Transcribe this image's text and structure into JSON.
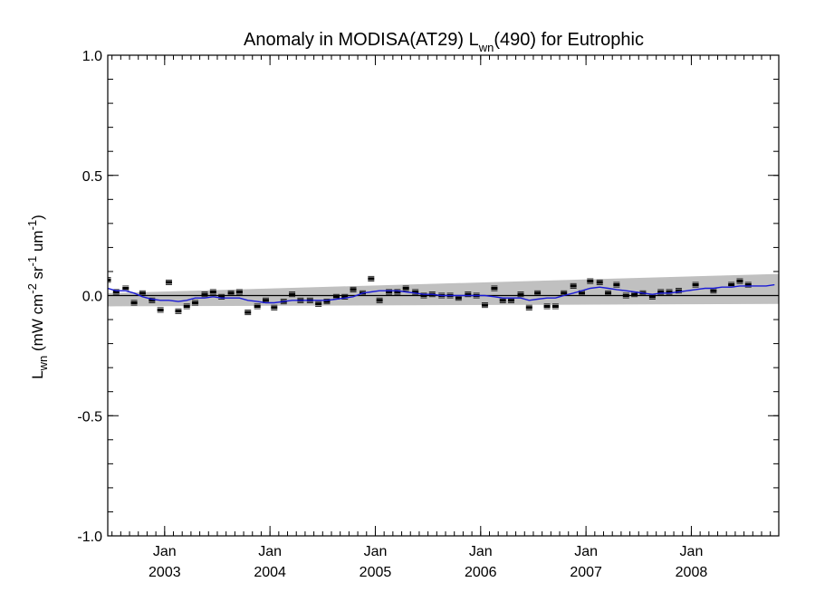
{
  "chart_data": {
    "type": "scatter",
    "title": {
      "prefix": "Anomaly in MODISA(AT29) L",
      "subscript": "wn",
      "suffix": "(490) for Eutrophic"
    },
    "ylabel": {
      "symbol": "L",
      "symbol_sub": "wn",
      "units": [
        {
          "text": " (mW cm"
        },
        {
          "text": "-2",
          "sup": true
        },
        {
          "text": " sr"
        },
        {
          "text": "-1",
          "sup": true
        },
        {
          "text": " um"
        },
        {
          "text": "-1",
          "sup": true
        },
        {
          "text": ")"
        }
      ]
    },
    "xlim": [
      2002.46,
      2008.83
    ],
    "ylim": [
      -1.0,
      1.0
    ],
    "y_ticks": [
      {
        "value": 1.0,
        "label": "1.0"
      },
      {
        "value": 0.5,
        "label": "0.5"
      },
      {
        "value": 0.0,
        "label": "0.0"
      },
      {
        "value": -0.5,
        "label": "-0.5"
      },
      {
        "value": -1.0,
        "label": "-1.0"
      }
    ],
    "y_minor_step": 0.1,
    "x_ticks": [
      {
        "value": 2003.0,
        "month": "Jan",
        "year": "2003"
      },
      {
        "value": 2004.0,
        "month": "Jan",
        "year": "2004"
      },
      {
        "value": 2005.0,
        "month": "Jan",
        "year": "2005"
      },
      {
        "value": 2006.0,
        "month": "Jan",
        "year": "2006"
      },
      {
        "value": 2007.0,
        "month": "Jan",
        "year": "2007"
      },
      {
        "value": 2008.0,
        "month": "Jan",
        "year": "2008"
      }
    ],
    "zero_line": 0.0,
    "band": {
      "color": "#c0c0c0",
      "lower": [
        [
          2002.46,
          -0.045
        ],
        [
          2008.83,
          -0.035
        ]
      ],
      "upper": [
        [
          2002.46,
          0.01
        ],
        [
          2008.83,
          0.09
        ]
      ]
    },
    "series": [
      {
        "kind": "points",
        "color": "#000000",
        "points": [
          [
            2002.46,
            0.065
          ],
          [
            2002.54,
            0.015
          ],
          [
            2002.63,
            0.03
          ],
          [
            2002.71,
            -0.03
          ],
          [
            2002.79,
            0.01
          ],
          [
            2002.88,
            -0.02
          ],
          [
            2002.96,
            -0.06
          ],
          [
            2003.04,
            0.055
          ],
          [
            2003.13,
            -0.065
          ],
          [
            2003.21,
            -0.045
          ],
          [
            2003.29,
            -0.03
          ],
          [
            2003.38,
            0.005
          ],
          [
            2003.46,
            0.015
          ],
          [
            2003.54,
            -0.005
          ],
          [
            2003.63,
            0.01
          ],
          [
            2003.71,
            0.015
          ],
          [
            2003.79,
            -0.07
          ],
          [
            2003.88,
            -0.045
          ],
          [
            2003.96,
            -0.02
          ],
          [
            2004.04,
            -0.05
          ],
          [
            2004.13,
            -0.025
          ],
          [
            2004.21,
            0.005
          ],
          [
            2004.29,
            -0.02
          ],
          [
            2004.38,
            -0.02
          ],
          [
            2004.46,
            -0.035
          ],
          [
            2004.54,
            -0.025
          ],
          [
            2004.63,
            -0.005
          ],
          [
            2004.71,
            -0.005
          ],
          [
            2004.79,
            0.025
          ],
          [
            2004.88,
            0.01
          ],
          [
            2004.96,
            0.07
          ],
          [
            2005.04,
            -0.02
          ],
          [
            2005.13,
            0.015
          ],
          [
            2005.21,
            0.015
          ],
          [
            2005.29,
            0.03
          ],
          [
            2005.38,
            0.015
          ],
          [
            2005.46,
            0.0
          ],
          [
            2005.54,
            0.005
          ],
          [
            2005.63,
            0.0
          ],
          [
            2005.71,
            0.0
          ],
          [
            2005.79,
            -0.01
          ],
          [
            2005.88,
            0.005
          ],
          [
            2005.96,
            0.0
          ],
          [
            2006.04,
            -0.04
          ],
          [
            2006.13,
            0.03
          ],
          [
            2006.21,
            -0.02
          ],
          [
            2006.29,
            -0.02
          ],
          [
            2006.38,
            0.005
          ],
          [
            2006.46,
            -0.05
          ],
          [
            2006.54,
            0.01
          ],
          [
            2006.63,
            -0.045
          ],
          [
            2006.71,
            -0.045
          ],
          [
            2006.79,
            0.01
          ],
          [
            2006.88,
            0.04
          ],
          [
            2006.96,
            0.01
          ],
          [
            2007.04,
            0.06
          ],
          [
            2007.13,
            0.055
          ],
          [
            2007.21,
            0.01
          ],
          [
            2007.29,
            0.045
          ],
          [
            2007.38,
            0.0
          ],
          [
            2007.46,
            0.005
          ],
          [
            2007.54,
            0.01
          ],
          [
            2007.63,
            -0.005
          ],
          [
            2007.71,
            0.015
          ],
          [
            2007.79,
            0.015
          ],
          [
            2007.88,
            0.02
          ],
          [
            2008.04,
            0.045
          ],
          [
            2008.21,
            0.02
          ],
          [
            2008.38,
            0.045
          ],
          [
            2008.46,
            0.06
          ],
          [
            2008.54,
            0.045
          ]
        ]
      },
      {
        "kind": "line",
        "color": "#1a1ad6",
        "points": [
          [
            2002.46,
            0.03
          ],
          [
            2002.54,
            0.02
          ],
          [
            2002.63,
            0.02
          ],
          [
            2002.71,
            0.01
          ],
          [
            2002.79,
            -0.005
          ],
          [
            2002.88,
            -0.015
          ],
          [
            2002.96,
            -0.02
          ],
          [
            2003.04,
            -0.02
          ],
          [
            2003.13,
            -0.025
          ],
          [
            2003.21,
            -0.02
          ],
          [
            2003.29,
            -0.01
          ],
          [
            2003.38,
            -0.01
          ],
          [
            2003.46,
            -0.005
          ],
          [
            2003.54,
            -0.01
          ],
          [
            2003.63,
            -0.01
          ],
          [
            2003.71,
            -0.01
          ],
          [
            2003.79,
            -0.02
          ],
          [
            2003.88,
            -0.025
          ],
          [
            2003.96,
            -0.03
          ],
          [
            2004.04,
            -0.03
          ],
          [
            2004.13,
            -0.025
          ],
          [
            2004.21,
            -0.02
          ],
          [
            2004.29,
            -0.02
          ],
          [
            2004.38,
            -0.02
          ],
          [
            2004.46,
            -0.02
          ],
          [
            2004.54,
            -0.02
          ],
          [
            2004.63,
            -0.015
          ],
          [
            2004.71,
            -0.01
          ],
          [
            2004.79,
            -0.005
          ],
          [
            2004.88,
            0.01
          ],
          [
            2004.96,
            0.015
          ],
          [
            2005.04,
            0.02
          ],
          [
            2005.13,
            0.02
          ],
          [
            2005.21,
            0.02
          ],
          [
            2005.29,
            0.015
          ],
          [
            2005.38,
            0.01
          ],
          [
            2005.46,
            0.005
          ],
          [
            2005.54,
            0.005
          ],
          [
            2005.63,
            0.0
          ],
          [
            2005.71,
            0.0
          ],
          [
            2005.79,
            0.0
          ],
          [
            2005.88,
            0.0
          ],
          [
            2005.96,
            0.0
          ],
          [
            2006.04,
            0.0
          ],
          [
            2006.13,
            -0.005
          ],
          [
            2006.21,
            -0.01
          ],
          [
            2006.29,
            -0.01
          ],
          [
            2006.38,
            -0.01
          ],
          [
            2006.46,
            -0.02
          ],
          [
            2006.54,
            -0.015
          ],
          [
            2006.63,
            -0.01
          ],
          [
            2006.71,
            -0.01
          ],
          [
            2006.79,
            0.0
          ],
          [
            2006.88,
            0.01
          ],
          [
            2006.96,
            0.02
          ],
          [
            2007.04,
            0.03
          ],
          [
            2007.13,
            0.035
          ],
          [
            2007.21,
            0.03
          ],
          [
            2007.29,
            0.025
          ],
          [
            2007.38,
            0.02
          ],
          [
            2007.46,
            0.015
          ],
          [
            2007.54,
            0.01
          ],
          [
            2007.63,
            0.005
          ],
          [
            2007.71,
            0.01
          ],
          [
            2007.79,
            0.01
          ],
          [
            2007.88,
            0.015
          ],
          [
            2007.96,
            0.02
          ],
          [
            2008.04,
            0.025
          ],
          [
            2008.13,
            0.03
          ],
          [
            2008.21,
            0.03
          ],
          [
            2008.29,
            0.035
          ],
          [
            2008.38,
            0.035
          ],
          [
            2008.46,
            0.04
          ],
          [
            2008.54,
            0.04
          ],
          [
            2008.63,
            0.04
          ],
          [
            2008.71,
            0.04
          ],
          [
            2008.79,
            0.045
          ]
        ]
      }
    ],
    "grid": false,
    "legend": "none"
  }
}
